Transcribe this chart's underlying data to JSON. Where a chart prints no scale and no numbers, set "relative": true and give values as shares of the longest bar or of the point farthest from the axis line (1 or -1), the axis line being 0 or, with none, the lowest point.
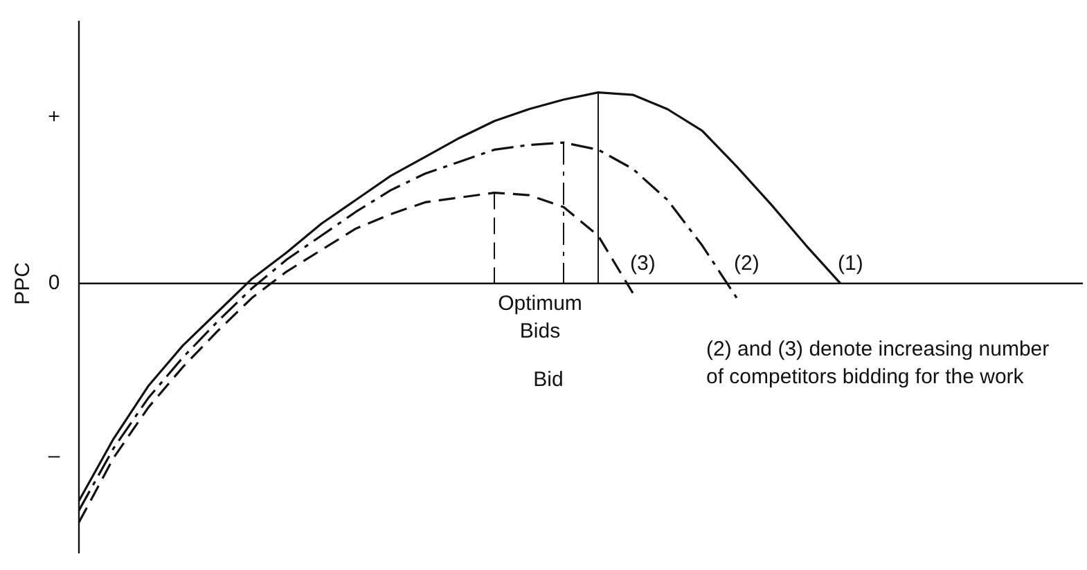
{
  "chart_data": {
    "type": "line",
    "relative": true,
    "xlabel": "Bid",
    "ylabel": "PPC",
    "legend": false,
    "marker": "none",
    "grid": false,
    "categories": [
      null,
      null,
      null,
      null,
      null,
      null,
      null,
      null,
      null,
      null,
      null,
      null,
      null,
      null,
      null,
      null,
      null,
      null,
      null,
      null,
      null,
      null,
      null,
      null,
      null,
      null,
      null,
      null,
      null,
      null
    ],
    "series": [
      {
        "name": "(1)",
        "color": "#111111",
        "line_style": "solid",
        "values": [
          -0.91,
          -0.65,
          -0.43,
          -0.26,
          -0.12,
          0.02,
          0.13,
          0.25,
          0.35,
          0.45,
          0.53,
          0.61,
          0.68,
          0.73,
          0.77,
          0.8,
          0.79,
          0.73,
          0.64,
          0.49,
          0.33,
          0.16,
          0,
          null,
          null,
          null,
          null,
          null,
          null,
          null
        ]
      },
      {
        "name": "(2)",
        "color": "#111111",
        "line_style": "dashdot",
        "values": [
          -0.95,
          -0.69,
          -0.48,
          -0.31,
          -0.16,
          -0.02,
          0.1,
          0.2,
          0.3,
          0.39,
          0.46,
          0.51,
          0.56,
          0.58,
          0.59,
          0.56,
          0.48,
          0.35,
          0.16,
          -0.06,
          null,
          null,
          null,
          null,
          null,
          null,
          null,
          null,
          null,
          null
        ]
      },
      {
        "name": "(3)",
        "color": "#111111",
        "line_style": "dashed",
        "values": [
          -1,
          -0.73,
          -0.52,
          -0.35,
          -0.2,
          -0.06,
          0.05,
          0.14,
          0.23,
          0.29,
          0.34,
          0.36,
          0.38,
          0.37,
          0.32,
          0.2,
          -0.04,
          null,
          null,
          null,
          null,
          null,
          null,
          null,
          null,
          null,
          null,
          null,
          null,
          null
        ]
      }
    ],
    "annotations": [
      "+",
      "0",
      "–",
      "Optimum Bids",
      "(2) and (3) denote increasing number of competitors bidding for the work"
    ]
  }
}
